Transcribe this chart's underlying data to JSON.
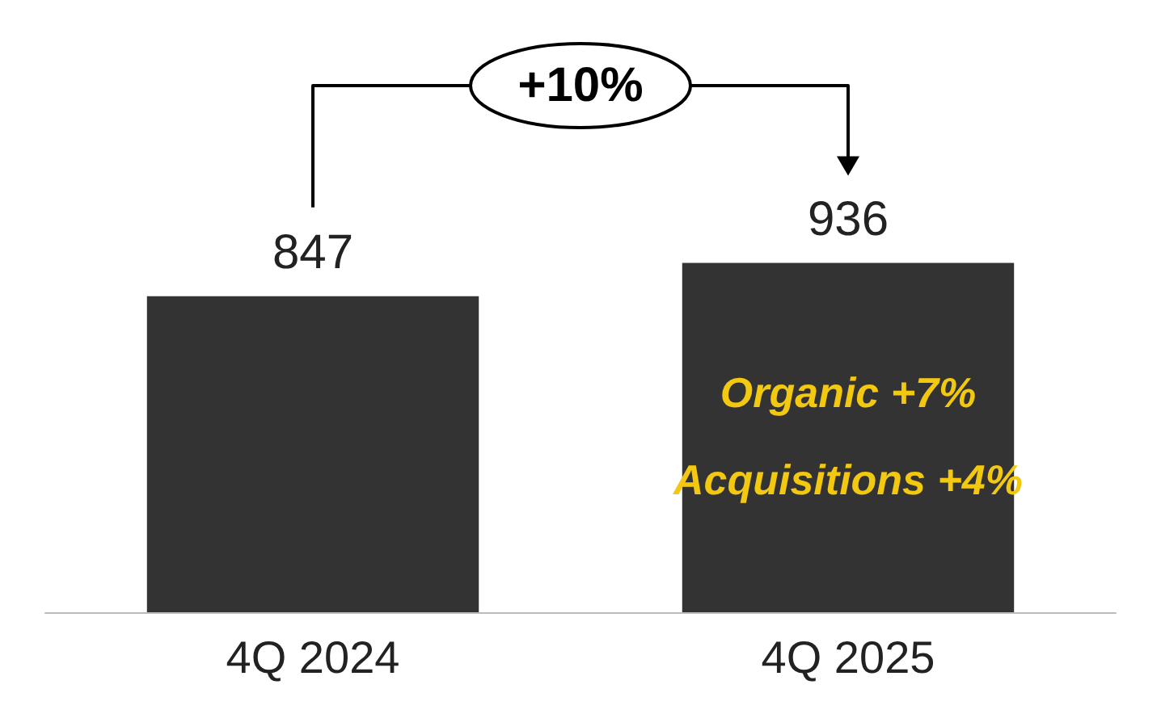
{
  "chart_data": {
    "type": "bar",
    "categories": [
      "4Q 2024",
      "4Q 2025"
    ],
    "values": [
      847,
      936
    ],
    "color": "#333333",
    "tick_labels": "x",
    "data_labels": true,
    "grid": false,
    "annotations": [
      "+10%",
      "Organic +7%",
      "Acquisitions +4%"
    ]
  }
}
